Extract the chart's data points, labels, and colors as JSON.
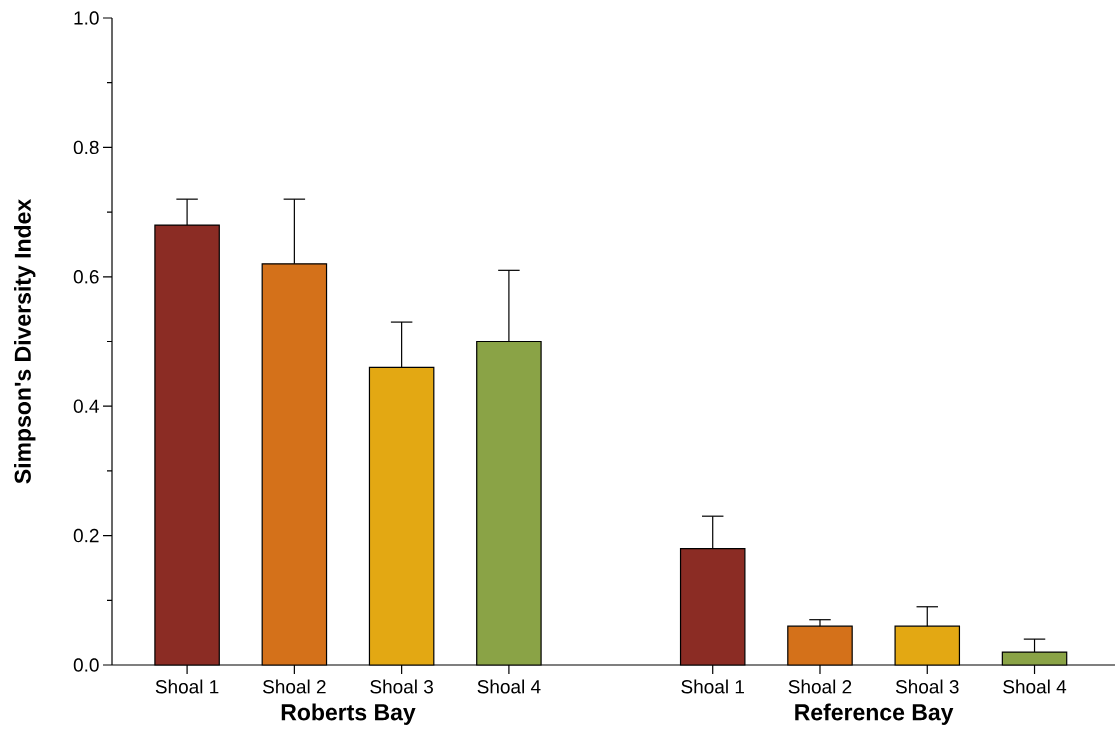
{
  "chart_data": {
    "type": "bar",
    "ylabel": "Simpson's Diversity Index",
    "categories": [
      "Shoal 1",
      "Shoal 2",
      "Shoal 3",
      "Shoal 4",
      "Shoal 1",
      "Shoal 2",
      "Shoal 3",
      "Shoal 4"
    ],
    "values": [
      0.68,
      0.62,
      0.46,
      0.5,
      0.18,
      0.06,
      0.06,
      0.02
    ],
    "errors": [
      [
        0.68,
        0.72
      ],
      [
        0.62,
        0.72
      ],
      [
        0.46,
        0.53
      ],
      [
        0.5,
        0.61
      ],
      [
        0.18,
        0.23
      ],
      [
        0.06,
        0.07
      ],
      [
        0.06,
        0.09
      ],
      [
        0.02,
        0.04
      ]
    ],
    "colors": [
      "#8b2c24",
      "#d4711a",
      "#e3a813",
      "#8aa346",
      "#8b2c24",
      "#d4711a",
      "#e3a813",
      "#8aa346"
    ],
    "ylim": [
      0,
      1
    ],
    "yticks": [
      {
        "value": 0,
        "label": "0.0"
      },
      {
        "value": 0.2,
        "label": "0.2"
      },
      {
        "value": 0.4,
        "label": "0.4"
      },
      {
        "value": 0.6,
        "label": "0.6"
      },
      {
        "value": 0.8,
        "label": "0.8"
      },
      {
        "value": 1,
        "label": "1.0"
      }
    ],
    "annotations": [
      "Roberts Bay",
      "Reference Bay"
    ]
  }
}
